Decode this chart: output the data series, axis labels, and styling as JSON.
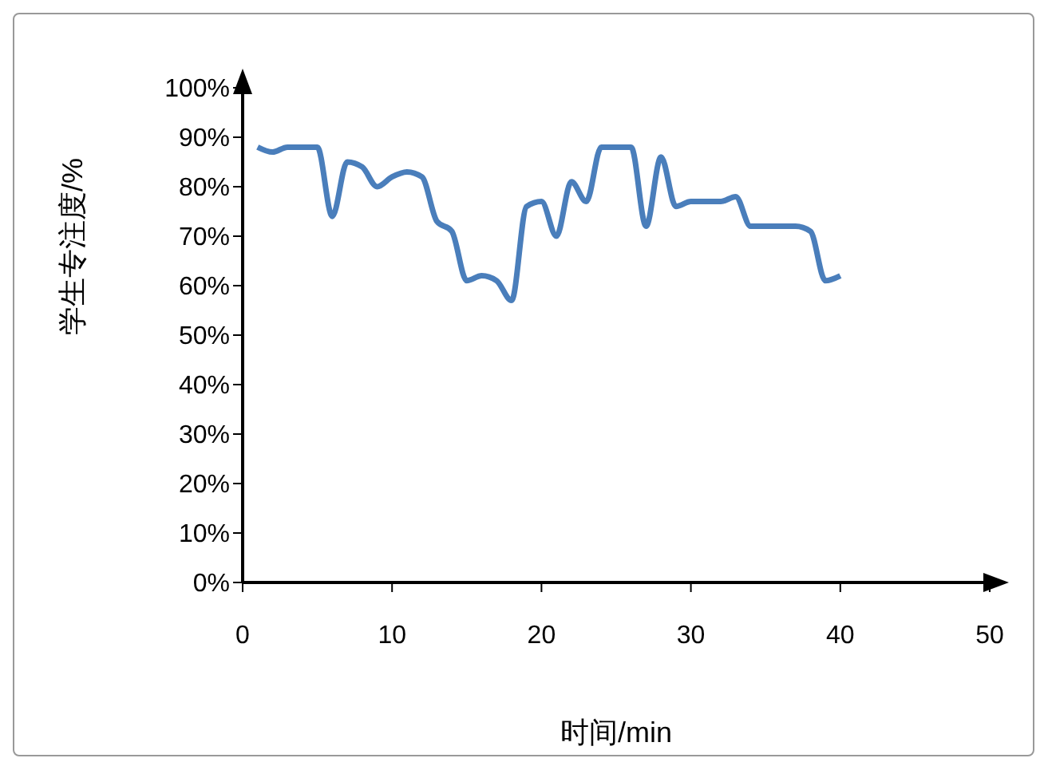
{
  "chart_data": {
    "type": "line",
    "xlabel": "时间/min",
    "ylabel": "学生专注度/%",
    "x": [
      1,
      2,
      3,
      4,
      5,
      6,
      7,
      8,
      9,
      10,
      11,
      12,
      13,
      14,
      15,
      16,
      17,
      18,
      19,
      20,
      21,
      22,
      23,
      24,
      25,
      26,
      27,
      28,
      29,
      30,
      31,
      32,
      33,
      34,
      35,
      36,
      37,
      38,
      39,
      40
    ],
    "series": [
      {
        "color": "#4a7ebb",
        "values": [
          88,
          87,
          88,
          88,
          88,
          74,
          85,
          84,
          80,
          82,
          83,
          82,
          73,
          71,
          61,
          62,
          61,
          57,
          76,
          77,
          70,
          81,
          77,
          88,
          88,
          88,
          72,
          86,
          76,
          77,
          77,
          77,
          78,
          72,
          72,
          72,
          72,
          71,
          61,
          62
        ]
      }
    ],
    "xlim": [
      0,
      50
    ],
    "xticks": [
      0,
      10,
      20,
      30,
      40,
      50
    ],
    "ylim": [
      0,
      100
    ],
    "yticks": [
      {
        "value": 0,
        "label": "0%"
      },
      {
        "value": 10,
        "label": "10%"
      },
      {
        "value": 20,
        "label": "20%"
      },
      {
        "value": 30,
        "label": "30%"
      },
      {
        "value": 40,
        "label": "40%"
      },
      {
        "value": 50,
        "label": "50%"
      },
      {
        "value": 60,
        "label": "60%"
      },
      {
        "value": 70,
        "label": "70%"
      },
      {
        "value": 80,
        "label": "80%"
      },
      {
        "value": 90,
        "label": "90%"
      },
      {
        "value": 100,
        "label": "100%"
      }
    ],
    "grid": false,
    "legend": false,
    "marker": "none",
    "line_style": "solid"
  }
}
